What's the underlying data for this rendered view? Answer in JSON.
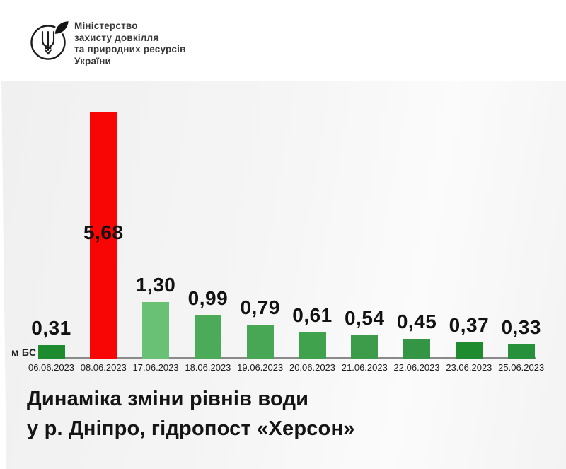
{
  "header": {
    "org_lines": [
      "Міністерство",
      "захисту довкілля",
      "та природних ресурсів",
      "України"
    ],
    "logo_icon": "ukraine-trident-leaf-emblem"
  },
  "chart_data": {
    "type": "bar",
    "categories": [
      "06.06.2023",
      "08.06.2023",
      "17.06.2023",
      "18.06.2023",
      "19.06.2023",
      "20.06.2023",
      "21.06.2023",
      "22.06.2023",
      "23.06.2023",
      "25.06.2023"
    ],
    "values": [
      0.31,
      5.68,
      1.3,
      0.99,
      0.79,
      0.61,
      0.54,
      0.45,
      0.37,
      0.33
    ],
    "value_labels": [
      "0,31",
      "5,68",
      "1,30",
      "0,99",
      "0,79",
      "0,61",
      "0,54",
      "0,45",
      "0,37",
      "0,33"
    ],
    "bar_colors": [
      "#1e8b2e",
      "#f80505",
      "#68c175",
      "#4cab59",
      "#47a754",
      "#41a24e",
      "#3c9c49",
      "#349545",
      "#1e8b2e",
      "#27903a"
    ],
    "unit_label": "м БС",
    "title_lines": [
      "Динаміка зміни рівнів води",
      "у р. Дніпро, гідропост «Херсон»"
    ],
    "title": "Динаміка зміни рівнів води у р. Дніпро, гідропост «Херсон»",
    "xlabel": "",
    "ylabel": "м БС",
    "ylim": [
      0,
      6
    ],
    "grid": false,
    "legend": "none",
    "highlight": {
      "category": "08.06.2023",
      "color": "#f80505"
    }
  },
  "colors": {
    "background": "#ffffff",
    "panel": "#f4f4f5",
    "axis": "#8a8a8a",
    "text": "#141414",
    "green_dark": "#1e8b2e",
    "green_mid": "#47a754",
    "green_light": "#68c175",
    "red": "#f80505"
  }
}
